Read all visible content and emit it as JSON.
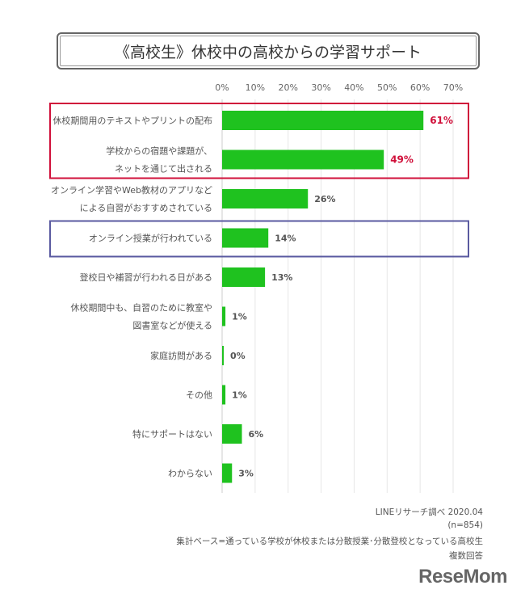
{
  "chart_data": {
    "type": "bar",
    "orientation": "horizontal",
    "title": "《高校生》休校中の高校からの学習サポート",
    "xlim": [
      0,
      70
    ],
    "x_ticks": [
      "0%",
      "10%",
      "20%",
      "30%",
      "40%",
      "50%",
      "60%",
      "70%"
    ],
    "grid": true,
    "categories": [
      [
        "休校期間用のテキストやプリントの配布"
      ],
      [
        "学校からの宿題や課題が、",
        "ネットを通じて出される"
      ],
      [
        "オンライン学習やWeb教材のアプリなど",
        "による自習がおすすめされている"
      ],
      [
        "オンライン授業が行われている"
      ],
      [
        "登校日や補習が行われる日がある"
      ],
      [
        "休校期間中も、自習のために教室や",
        "図書室などが使える"
      ],
      [
        "家庭訪問がある"
      ],
      [
        "その他"
      ],
      [
        "特にサポートはない"
      ],
      [
        "わからない"
      ]
    ],
    "values": [
      61,
      49,
      26,
      14,
      13,
      1,
      0,
      1,
      6,
      3
    ],
    "labels": [
      "61%",
      "49%",
      "26%",
      "14%",
      "13%",
      "1%",
      "0%",
      "1%",
      "6%",
      "3%"
    ],
    "highlight_labels": [
      0,
      1
    ],
    "highlight_groups": [
      {
        "rows": [
          0,
          1
        ],
        "color": "#d0103a"
      },
      {
        "rows": [
          3
        ],
        "color": "#5a5aa0"
      }
    ],
    "bar_color": "#1fc21f",
    "label_color": "#555555",
    "highlight_label_color": "#d0103a"
  },
  "source": {
    "line1": "LINEリサーチ調べ 2020.04",
    "line2": "(n=854)",
    "line3": "集計ベース=通っている学校が休校または分散授業･分散登校となっている高校生",
    "line4": "複数回答"
  },
  "logo": "ReseMom"
}
